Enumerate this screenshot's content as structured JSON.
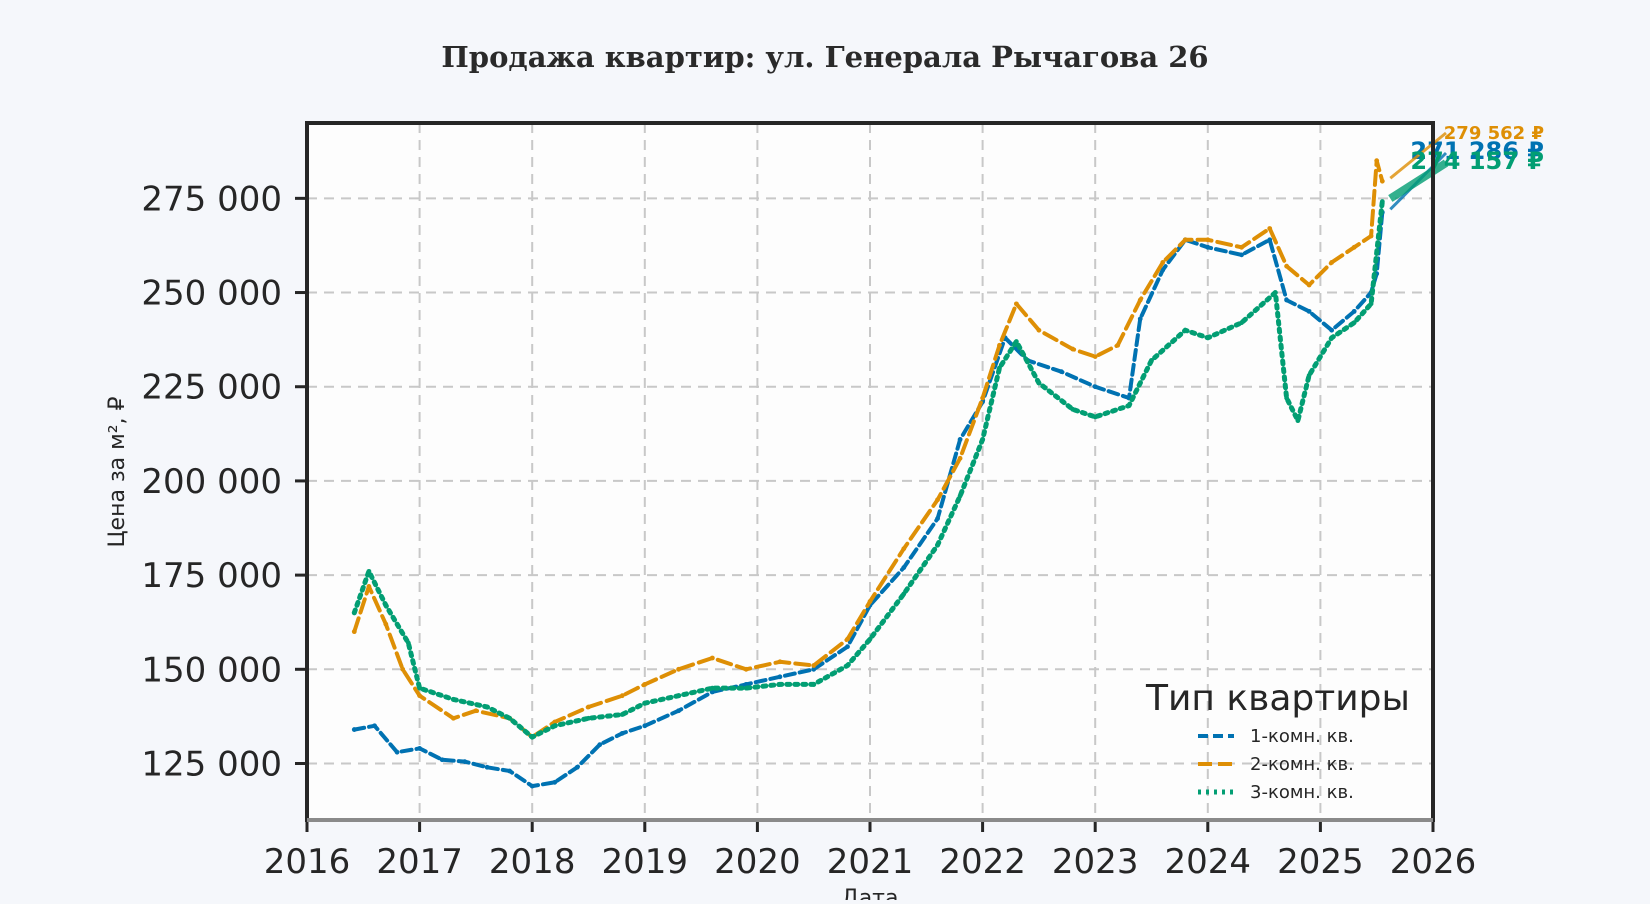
{
  "chart_data": {
    "type": "line",
    "title": "Продажа квартир: ул. Генерала Рычагова 26",
    "xlabel": "Дата",
    "ylabel": "Цена за м², ₽",
    "xlim": [
      2016.0,
      2026.0
    ],
    "ylim": [
      110000,
      295000
    ],
    "x_ticks": [
      2016,
      2017,
      2018,
      2019,
      2020,
      2021,
      2022,
      2023,
      2024,
      2025,
      2026
    ],
    "x_tick_labels": [
      "2016",
      "2017",
      "2018",
      "2019",
      "2020",
      "2021",
      "2022",
      "2023",
      "2024",
      "2025",
      "2026"
    ],
    "y_ticks": [
      125000,
      150000,
      175000,
      200000,
      225000,
      250000,
      275000
    ],
    "y_tick_labels": [
      "125 000",
      "150 000",
      "175 000",
      "200 000",
      "225 000",
      "250 000",
      "275 000"
    ],
    "grid": true,
    "legend": {
      "title": "Тип квартиры",
      "placement": "lower-right"
    },
    "series": [
      {
        "name": "1-комн. кв.",
        "color": "#0072b2",
        "style": "dash-square",
        "end_label": "271 286 ₽",
        "x": [
          2016.42,
          2016.6,
          2016.8,
          2017.0,
          2017.2,
          2017.4,
          2017.6,
          2017.8,
          2018.0,
          2018.2,
          2018.4,
          2018.6,
          2018.8,
          2019.0,
          2019.3,
          2019.6,
          2019.9,
          2020.2,
          2020.5,
          2020.8,
          2021.0,
          2021.3,
          2021.6,
          2021.8,
          2022.0,
          2022.2,
          2022.4,
          2022.7,
          2023.0,
          2023.3,
          2023.4,
          2023.6,
          2023.8,
          2024.0,
          2024.3,
          2024.55,
          2024.7,
          2024.9,
          2025.1,
          2025.3,
          2025.45,
          2025.5,
          2025.55
        ],
        "y": [
          134000,
          135000,
          128000,
          129000,
          126000,
          125500,
          124000,
          123000,
          119000,
          120000,
          124000,
          130000,
          133000,
          135000,
          139000,
          144000,
          146000,
          148000,
          150000,
          156000,
          167000,
          177000,
          190000,
          211000,
          221000,
          238000,
          232000,
          229000,
          225000,
          222000,
          243000,
          256000,
          264000,
          262000,
          260000,
          264000,
          248000,
          245000,
          240000,
          245000,
          250000,
          255000,
          271286
        ]
      },
      {
        "name": "2-комн. кв.",
        "color": "#de8f05",
        "style": "dash",
        "end_label": "279 562 ₽",
        "x": [
          2016.42,
          2016.55,
          2016.7,
          2016.85,
          2017.0,
          2017.3,
          2017.5,
          2017.8,
          2018.0,
          2018.2,
          2018.5,
          2018.8,
          2019.0,
          2019.3,
          2019.6,
          2019.9,
          2020.2,
          2020.5,
          2020.8,
          2021.0,
          2021.3,
          2021.6,
          2021.8,
          2022.0,
          2022.15,
          2022.3,
          2022.5,
          2022.8,
          2023.0,
          2023.2,
          2023.4,
          2023.6,
          2023.8,
          2024.0,
          2024.3,
          2024.55,
          2024.7,
          2024.9,
          2025.1,
          2025.3,
          2025.45,
          2025.5,
          2025.55
        ],
        "y": [
          160000,
          172000,
          162000,
          150000,
          143000,
          137000,
          139000,
          137000,
          132000,
          136000,
          140000,
          143000,
          146000,
          150000,
          153000,
          150000,
          152000,
          151000,
          158000,
          168000,
          182000,
          195000,
          206000,
          222000,
          236000,
          247000,
          240000,
          235000,
          233000,
          236000,
          248000,
          258000,
          264000,
          264000,
          262000,
          267000,
          257000,
          252000,
          258000,
          262000,
          265000,
          285000,
          279562
        ]
      },
      {
        "name": "3-комн. кв.",
        "color": "#029e73",
        "style": "dot",
        "end_label": "274 157 ₽",
        "x": [
          2016.42,
          2016.55,
          2016.7,
          2016.9,
          2017.0,
          2017.3,
          2017.6,
          2017.8,
          2018.0,
          2018.2,
          2018.5,
          2018.8,
          2019.0,
          2019.3,
          2019.6,
          2019.9,
          2020.2,
          2020.5,
          2020.8,
          2021.0,
          2021.3,
          2021.6,
          2021.8,
          2022.0,
          2022.15,
          2022.3,
          2022.5,
          2022.8,
          2023.0,
          2023.3,
          2023.5,
          2023.8,
          2024.0,
          2024.3,
          2024.6,
          2024.7,
          2024.8,
          2024.9,
          2025.1,
          2025.3,
          2025.45,
          2025.55
        ],
        "y": [
          165000,
          176000,
          167000,
          157000,
          145000,
          142000,
          140000,
          137000,
          132000,
          135000,
          137000,
          138000,
          141000,
          143000,
          145000,
          145000,
          146000,
          146000,
          151000,
          158000,
          170000,
          183000,
          196000,
          211000,
          230000,
          237000,
          226000,
          219000,
          217000,
          220000,
          232000,
          240000,
          238000,
          242000,
          250000,
          222000,
          216000,
          228000,
          238000,
          242000,
          247000,
          274157
        ]
      }
    ]
  }
}
